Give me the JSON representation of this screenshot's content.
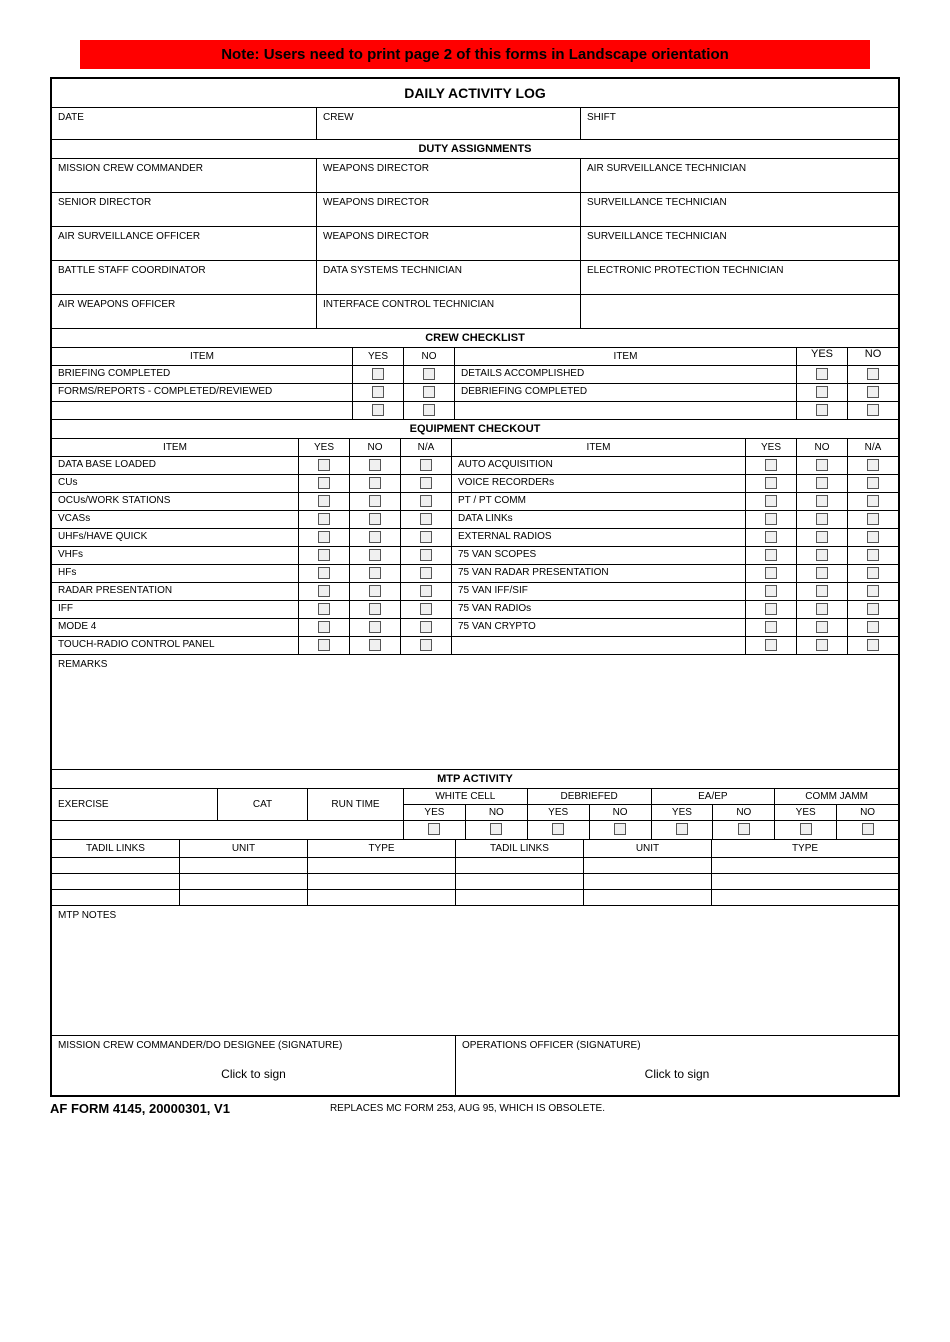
{
  "note": "Note: Users need to print page 2 of this forms in Landscape orientation",
  "title": "DAILY ACTIVITY LOG",
  "header": {
    "date": "DATE",
    "crew": "CREW",
    "shift": "SHIFT"
  },
  "duty": {
    "heading": "DUTY ASSIGNMENTS",
    "rows": [
      {
        "l": "MISSION CREW COMMANDER",
        "m": "WEAPONS DIRECTOR",
        "r": "AIR SURVEILLANCE TECHNICIAN"
      },
      {
        "l": "SENIOR DIRECTOR",
        "m": "WEAPONS DIRECTOR",
        "r": "SURVEILLANCE TECHNICIAN"
      },
      {
        "l": "AIR SURVEILLANCE OFFICER",
        "m": "WEAPONS DIRECTOR",
        "r": "SURVEILLANCE TECHNICIAN"
      },
      {
        "l": "BATTLE STAFF COORDINATOR",
        "m": "DATA SYSTEMS TECHNICIAN",
        "r": "ELECTRONIC PROTECTION TECHNICIAN"
      },
      {
        "l": "AIR WEAPONS OFFICER",
        "m": "INTERFACE CONTROL TECHNICIAN",
        "r": ""
      }
    ]
  },
  "crew_checklist": {
    "heading": "CREW CHECKLIST",
    "cols": {
      "item": "ITEM",
      "yes": "YES",
      "no": "NO"
    },
    "rows": [
      {
        "l": "BRIEFING COMPLETED",
        "r": "DETAILS ACCOMPLISHED"
      },
      {
        "l": "FORMS/REPORTS - COMPLETED/REVIEWED",
        "r": "DEBRIEFING COMPLETED"
      },
      {
        "l": "",
        "r": ""
      }
    ]
  },
  "equipment": {
    "heading": "EQUIPMENT CHECKOUT",
    "cols": {
      "item": "ITEM",
      "yes": "YES",
      "no": "NO",
      "na": "N/A"
    },
    "rows": [
      {
        "l": "DATA BASE LOADED",
        "r": "AUTO ACQUISITION"
      },
      {
        "l": "CUs",
        "r": "VOICE RECORDERs"
      },
      {
        "l": "OCUs/WORK STATIONS",
        "r": "PT / PT COMM"
      },
      {
        "l": "VCASs",
        "r": "DATA LINKs"
      },
      {
        "l": "UHFs/HAVE QUICK",
        "r": "EXTERNAL RADIOS"
      },
      {
        "l": "VHFs",
        "r": "75 VAN SCOPES"
      },
      {
        "l": "HFs",
        "r": "75 VAN RADAR PRESENTATION"
      },
      {
        "l": "RADAR PRESENTATION",
        "r": "75 VAN IFF/SIF"
      },
      {
        "l": "IFF",
        "r": "75 VAN RADIOs"
      },
      {
        "l": "MODE 4",
        "r": "75 VAN CRYPTO"
      },
      {
        "l": "TOUCH-RADIO CONTROL PANEL",
        "r": ""
      }
    ]
  },
  "remarks_label": "REMARKS",
  "mtp": {
    "heading": "MTP ACTIVITY",
    "exercise": "EXERCISE",
    "cat": "CAT",
    "runtime": "RUN TIME",
    "whitecell": "WHITE CELL",
    "debriefed": "DEBRIEFED",
    "eaep": "EA/EP",
    "commjamm": "COMM JAMM",
    "yes": "YES",
    "no": "NO"
  },
  "tadil": {
    "tadil_links": "TADIL LINKS",
    "unit": "UNIT",
    "type": "TYPE"
  },
  "mtp_notes_label": "MTP NOTES",
  "sig": {
    "left": "MISSION CREW COMMANDER/DO DESIGNEE (SIGNATURE)",
    "right": "OPERATIONS OFFICER (SIGNATURE)",
    "click": "Click to sign"
  },
  "footer": {
    "form_id": "AF FORM 4145, 20000301, V1",
    "replaces": "REPLACES MC FORM 253, AUG 95, WHICH IS OBSOLETE."
  },
  "colors": {
    "note_bg": "#ff0000",
    "border": "#000000",
    "checkbox_fill": "#f0f0f0"
  }
}
